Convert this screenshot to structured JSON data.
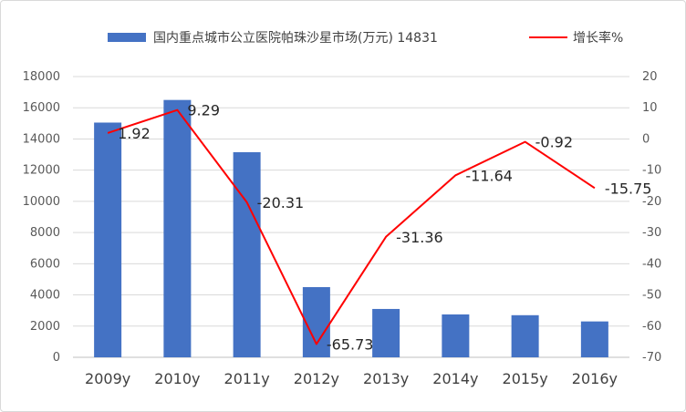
{
  "chart_data": {
    "type": "bar+line",
    "categories": [
      "2009y",
      "2010y",
      "2011y",
      "2012y",
      "2013y",
      "2014y",
      "2015y",
      "2016y"
    ],
    "series": [
      {
        "name": "国内重点城市公立医院帕珠沙星市场(万元) 14831",
        "type": "bar",
        "axis": "left",
        "color": "#4472C4",
        "values": [
          15050,
          16500,
          13150,
          4500,
          3100,
          2750,
          2700,
          2300
        ]
      },
      {
        "name": "增长率%",
        "type": "line",
        "axis": "right",
        "color": "#FF0000",
        "values": [
          1.92,
          9.29,
          -20.31,
          -65.73,
          -31.36,
          -11.64,
          -0.92,
          -15.75
        ],
        "labels": [
          "1.92",
          "9.29",
          "-20.31",
          "-65.73",
          "-31.36",
          "-11.64",
          "-0.92",
          "-15.75"
        ]
      }
    ],
    "left_axis": {
      "ylim": [
        0,
        18000
      ],
      "ticks": [
        "0",
        "2000",
        "4000",
        "6000",
        "8000",
        "10000",
        "12000",
        "14000",
        "16000",
        "18000"
      ]
    },
    "right_axis": {
      "ylim": [
        -70,
        20
      ],
      "ticks": [
        "-70",
        "-60",
        "-50",
        "-40",
        "-30",
        "-20",
        "-10",
        "0",
        "10",
        "20"
      ]
    },
    "grid": true,
    "legend_position": "top"
  }
}
